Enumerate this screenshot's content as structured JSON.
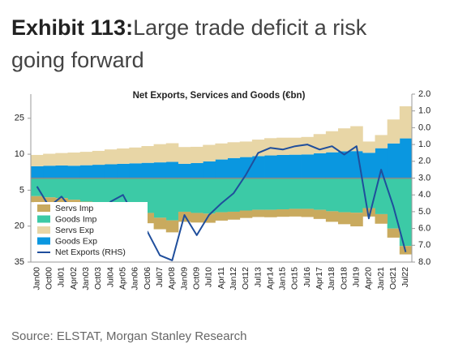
{
  "chart_data": {
    "type": "stacked-bar-line",
    "exhibit": "Exhibit 113:",
    "headline": "Large trade deficit a risk going forward",
    "title": "Net Exports, Services and Goods (€bn)",
    "source": "Source: ELSTAT, Morgan Stanley Research",
    "categories": [
      "Jan00",
      "Oct00",
      "Jul01",
      "Apr02",
      "Jan03",
      "Oct03",
      "Jul04",
      "Apr05",
      "Jan06",
      "Oct06",
      "Jul07",
      "Apr08",
      "Jan09",
      "Oct09",
      "Jul10",
      "Apr11",
      "Jan12",
      "Oct12",
      "Jul13",
      "Apr14",
      "Jan15",
      "Oct15",
      "Jul16",
      "Apr17",
      "Jan18",
      "Oct18",
      "Jul19",
      "Apr20",
      "Jan21",
      "Oct21",
      "Jul22"
    ],
    "series": [
      {
        "name": "Servs Imp",
        "color": "#c9aa5e",
        "values": [
          -2.5,
          -2.6,
          -2.7,
          -2.8,
          -3,
          -3.2,
          -3.4,
          -3.6,
          -3.9,
          -4.3,
          -4.8,
          -5,
          -4.2,
          -4,
          -3.8,
          -3.5,
          -3.3,
          -3.1,
          -3,
          -3.1,
          -3.1,
          -3.2,
          -3.4,
          -3.8,
          -4.4,
          -5,
          -5.7,
          -3.5,
          -4,
          -3.8,
          -3.5
        ]
      },
      {
        "name": "Goods Imp",
        "color": "#3ccaa6",
        "values": [
          -7.5,
          -8,
          -8.3,
          -9,
          -9.8,
          -10.2,
          -10.8,
          -11.5,
          -12.6,
          -14.5,
          -16.5,
          -17.6,
          -14,
          -14.5,
          -14.8,
          -14.2,
          -14,
          -13.5,
          -13.2,
          -13.2,
          -13,
          -12.8,
          -12.8,
          -13.2,
          -13.8,
          -14.2,
          -14.4,
          -12.5,
          -15,
          -21,
          -28.3
        ]
      },
      {
        "name": "Servs Exp",
        "color": "#e8d6a6",
        "values": [
          4.7,
          5,
          5.2,
          5.5,
          5.6,
          5.8,
          6.2,
          6.4,
          6.6,
          7,
          7.6,
          7.8,
          7,
          6.8,
          6.9,
          6.7,
          6.6,
          6.5,
          6.9,
          7.2,
          7.2,
          7.1,
          7.3,
          8,
          8.8,
          9.6,
          10.4,
          4.7,
          5.5,
          10,
          13.4
        ]
      },
      {
        "name": "Goods Exp",
        "color": "#0a97e0",
        "values": [
          5,
          5.2,
          5.3,
          5.2,
          5.4,
          5.6,
          5.8,
          6,
          6.2,
          6.4,
          6.6,
          6.8,
          6,
          6.3,
          7,
          7.8,
          8.4,
          8.8,
          9.2,
          9.5,
          9.7,
          9.8,
          9.9,
          10.4,
          10.8,
          11.2,
          11.3,
          10.6,
          12.5,
          14.5,
          16.6
        ]
      },
      {
        "name": "Net Exports (RHS)",
        "color": "#1f4e9c",
        "axis": "y2",
        "values": [
          -3.5,
          -4.7,
          -4.1,
          -5,
          -5.1,
          -5.2,
          -4.4,
          -4,
          -5.4,
          -6.2,
          -7.6,
          -7.9,
          -5.2,
          -6.4,
          -5.2,
          -4.5,
          -3.9,
          -2.8,
          -1.5,
          -1.2,
          -1.3,
          -1.1,
          -1,
          -1.3,
          -1.1,
          -1.6,
          -1.1,
          -5.4,
          -2.5,
          -4.7,
          -7.4
        ]
      }
    ],
    "ylim": [
      -35,
      30
    ],
    "yticks": [
      25,
      10,
      {
        "value": -5,
        "label": "5"
      },
      {
        "value": -20,
        "label": "20"
      },
      {
        "value": -35,
        "label": "35"
      }
    ],
    "y2lim": [
      -8,
      2
    ],
    "y2ticks": [
      {
        "value": 2,
        "label": "2.0"
      },
      {
        "value": 1,
        "label": "1.0"
      },
      {
        "value": 0,
        "label": "0.0"
      },
      {
        "value": -1,
        "label": "1.0"
      },
      {
        "value": -2,
        "label": "2.0"
      },
      {
        "value": -3,
        "label": "3.0"
      },
      {
        "value": -4,
        "label": "4.0"
      },
      {
        "value": -5,
        "label": "5.0"
      },
      {
        "value": -6,
        "label": "6.0"
      },
      {
        "value": -7,
        "label": "7.0"
      },
      {
        "value": -8,
        "label": "8.0"
      }
    ],
    "legend": "lower-left"
  }
}
